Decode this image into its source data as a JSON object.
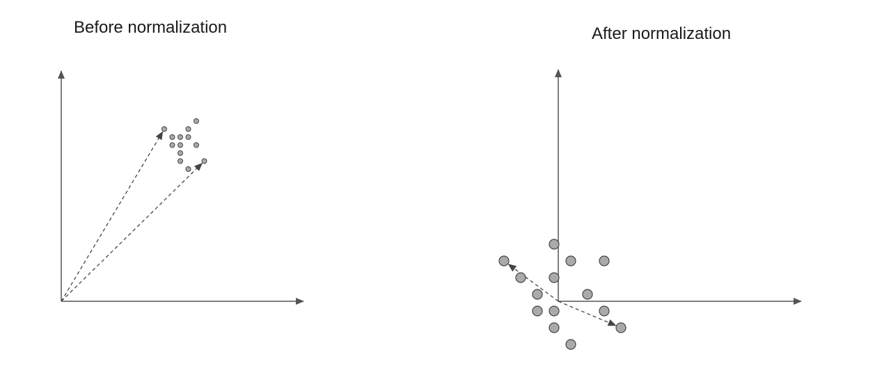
{
  "panels": [
    {
      "id": "before",
      "title": "Before normalization",
      "points": [
        [
          0,
          0
        ],
        [
          1,
          1
        ],
        [
          2,
          2
        ],
        [
          -2,
          1
        ],
        [
          0,
          -1
        ],
        [
          -1,
          0
        ],
        [
          1,
          0
        ],
        [
          2,
          -1
        ],
        [
          -1,
          -1
        ],
        [
          0,
          -2
        ],
        [
          3,
          -3
        ],
        [
          0,
          -3
        ],
        [
          1,
          -4
        ]
      ],
      "vectors": [
        [
          -2,
          1
        ],
        [
          3,
          -3
        ]
      ]
    },
    {
      "id": "after",
      "title": "After normalization",
      "points": [
        [
          0,
          3.5
        ],
        [
          1,
          2.5
        ],
        [
          3,
          2.5
        ],
        [
          -3,
          2.5
        ],
        [
          -2,
          1.5
        ],
        [
          0,
          1.5
        ],
        [
          -1,
          0.5
        ],
        [
          2,
          0.5
        ],
        [
          -1,
          -0.5
        ],
        [
          0,
          -0.5
        ],
        [
          3,
          -0.5
        ],
        [
          0,
          -1.5
        ],
        [
          4,
          -1.5
        ],
        [
          1,
          -2.5
        ]
      ],
      "vectors": [
        [
          -3,
          2.5
        ],
        [
          4,
          -1.5
        ]
      ]
    }
  ],
  "colors": {
    "axis": "#555555",
    "point_fill": "#aaaaaa",
    "point_stroke": "#444444",
    "vector": "#444444"
  }
}
